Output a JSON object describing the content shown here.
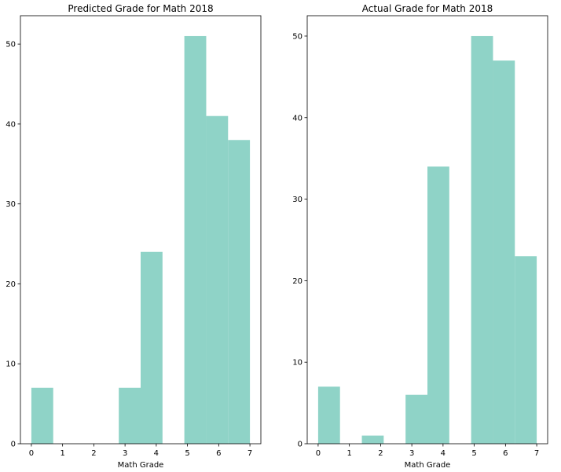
{
  "chart_data": [
    {
      "type": "bar",
      "title": "Predicted Grade for Math 2018",
      "xlabel": "Math Grade",
      "ylabel": "",
      "xlim": [
        -0.35,
        7.35
      ],
      "ylim": [
        0,
        53.55
      ],
      "xticks": [
        0,
        1,
        2,
        3,
        4,
        5,
        6,
        7
      ],
      "yticks": [
        0,
        10,
        20,
        30,
        40,
        50
      ],
      "bin_edges": [
        0,
        0.7,
        1.4,
        2.1,
        2.8,
        3.5,
        4.2,
        4.9,
        5.6,
        6.3,
        7.0
      ],
      "values": [
        7,
        0,
        0,
        0,
        7,
        24,
        0,
        51,
        41,
        38
      ],
      "color": "#8fd3c7"
    },
    {
      "type": "bar",
      "title": "Actual Grade for Math 2018",
      "xlabel": "Math Grade",
      "ylabel": "",
      "xlim": [
        -0.35,
        7.35
      ],
      "ylim": [
        0,
        52.5
      ],
      "xticks": [
        0,
        1,
        2,
        3,
        4,
        5,
        6,
        7
      ],
      "yticks": [
        0,
        10,
        20,
        30,
        40,
        50
      ],
      "bin_edges": [
        0,
        0.7,
        1.4,
        2.1,
        2.8,
        3.5,
        4.2,
        4.9,
        5.6,
        6.3,
        7.0
      ],
      "values": [
        7,
        0,
        1,
        0,
        6,
        34,
        0,
        50,
        47,
        23
      ],
      "color": "#8fd3c7"
    }
  ]
}
